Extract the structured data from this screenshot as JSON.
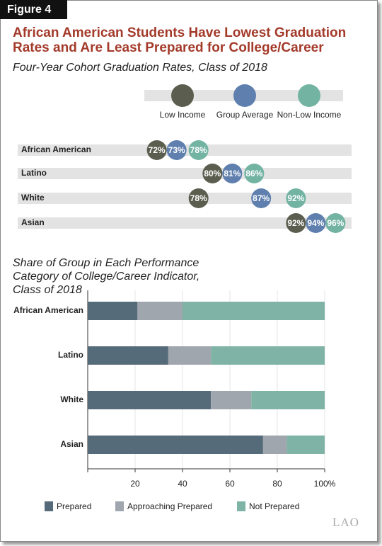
{
  "figure_label": "Figure 4",
  "title": "African American Students Have Lowest Graduation Rates and Are Least Prepared for College/Career",
  "logo": "LAO",
  "chart_data": [
    {
      "type": "dot",
      "title": "Four-Year Cohort Graduation Rates, Class of 2018",
      "categories": [
        "African American",
        "Latino",
        "White",
        "Asian"
      ],
      "xlim": [
        52,
        100
      ],
      "series": [
        {
          "name": "Low Income",
          "color": "#5b5e4e",
          "values": [
            72,
            80,
            78,
            92
          ],
          "value_labels": [
            "72%",
            "80%",
            "78%",
            "92%"
          ]
        },
        {
          "name": "Group Average",
          "color": "#5f7fae",
          "values": [
            73,
            81,
            87,
            94
          ],
          "value_labels": [
            "73%",
            "81%",
            "87%",
            "94%"
          ]
        },
        {
          "name": "Non-Low Income",
          "color": "#72b3a2",
          "values": [
            78,
            86,
            92,
            96
          ],
          "value_labels": [
            "78%",
            "86%",
            "92%",
            "96%"
          ]
        }
      ]
    },
    {
      "type": "stacked_bar_horizontal",
      "title": "Share of Group in Each Performance Category of College/Career Indicator, Class of 2018",
      "categories": [
        "African American",
        "Latino",
        "White",
        "Asian"
      ],
      "xlim": [
        0,
        100
      ],
      "xticks": [
        20,
        40,
        60,
        80,
        {
          "value": 100,
          "label": "100%"
        }
      ],
      "grid": true,
      "series": [
        {
          "name": "Prepared",
          "color": "#566b7a",
          "values": [
            21,
            34,
            52,
            74
          ]
        },
        {
          "name": "Approaching Prepared",
          "color": "#a0a6ad",
          "values": [
            19,
            18,
            17,
            10
          ]
        },
        {
          "name": "Not Prepared",
          "color": "#7fb3a6",
          "values": [
            60,
            48,
            31,
            16
          ]
        }
      ]
    }
  ]
}
